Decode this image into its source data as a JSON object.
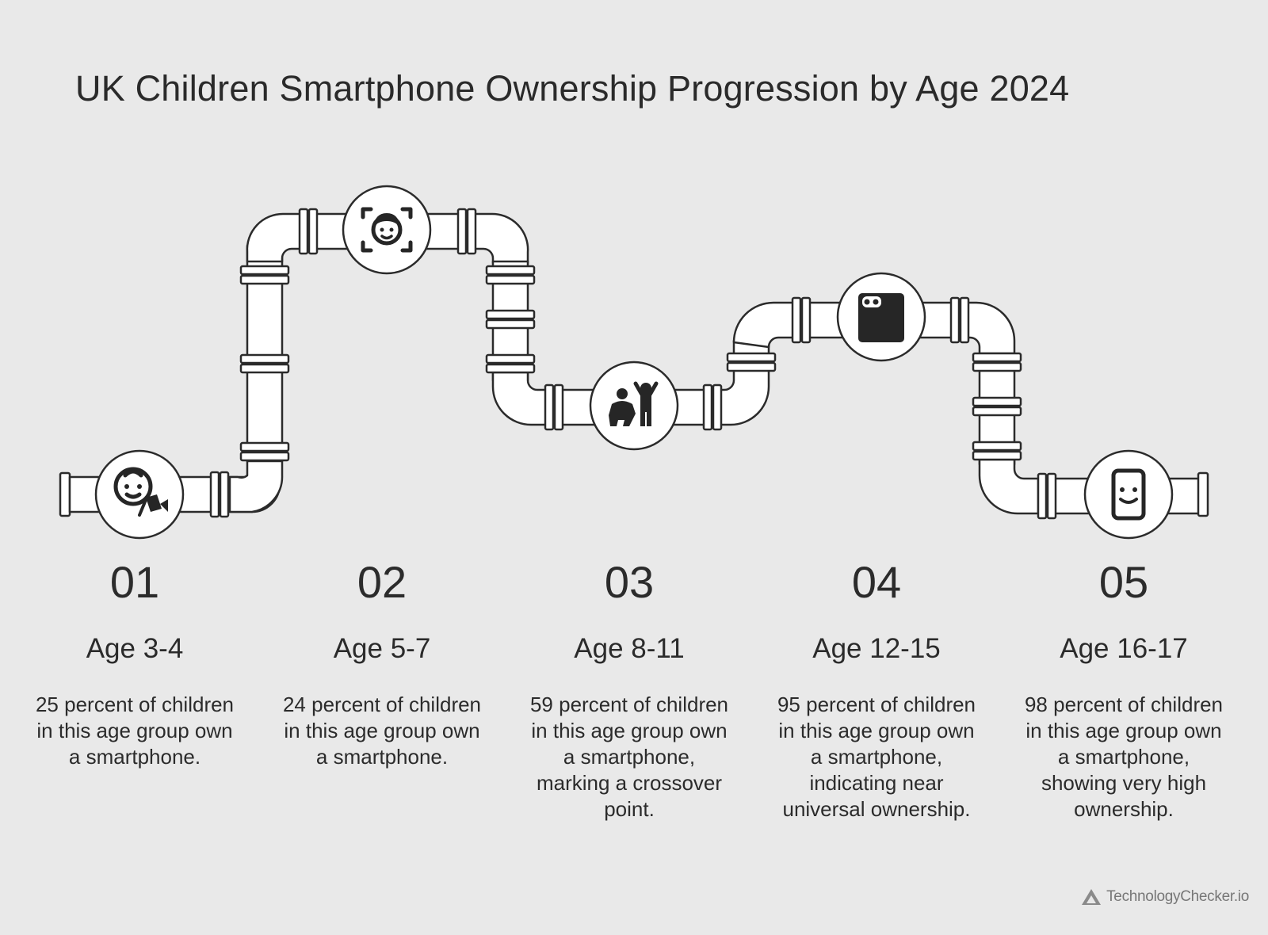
{
  "title": "UK Children Smartphone Ownership Progression by Age 2024",
  "stages": [
    {
      "number": "01",
      "age": "Age 3-4",
      "description": "25 percent of children in this age group own a smartphone.",
      "icon": "baby-face-icon"
    },
    {
      "number": "02",
      "age": "Age 5-7",
      "description": "24 percent of children in this age group own a smartphone.",
      "icon": "face-scan-icon"
    },
    {
      "number": "03",
      "age": "Age 8-11",
      "description": "59 percent of children in this age group own a smartphone, marking a crossover point.",
      "icon": "children-playing-icon"
    },
    {
      "number": "04",
      "age": "Age 12-15",
      "description": "95 percent of children in this age group own a smartphone, indicating near universal ownership.",
      "icon": "phone-camera-icon"
    },
    {
      "number": "05",
      "age": "Age 16-17",
      "description": "98 percent of children in this age group own a smartphone, showing very high ownership.",
      "icon": "smiling-phone-icon"
    }
  ],
  "brand": "TechnologyChecker.io",
  "colors": {
    "background": "#e9e9e9",
    "ink": "#2b2b2b",
    "pipe": "#ffffff",
    "brand": "#777777"
  }
}
